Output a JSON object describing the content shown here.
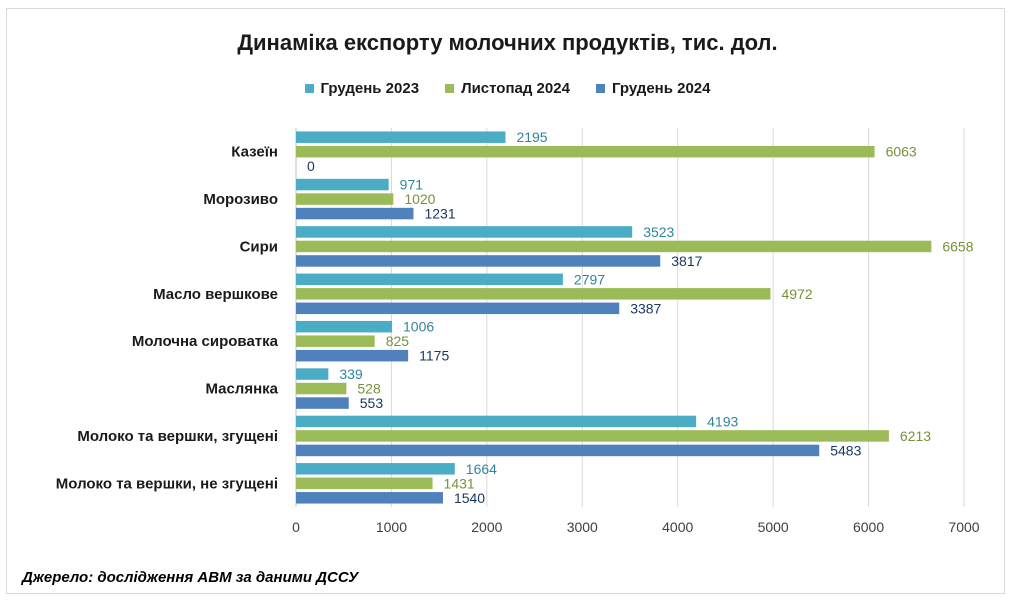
{
  "chart_data": {
    "type": "bar",
    "orientation": "horizontal",
    "title": "Динаміка експорту молочних продуктів, тис. дол.",
    "categories": [
      "Казеїн",
      "Морозиво",
      "Сири",
      "Масло вершкове",
      "Молочна сироватка",
      "Маслянка",
      "Молоко та вершки, згущені",
      "Молоко та вершки, не згущені"
    ],
    "series": [
      {
        "name": "Грудень 2023",
        "color": "#4bacc6",
        "label_color": "#31849b",
        "values": [
          2195,
          971,
          3523,
          2797,
          1006,
          339,
          4193,
          1664
        ]
      },
      {
        "name": "Листопад 2024",
        "color": "#9bbb59",
        "label_color": "#76923c",
        "values": [
          6063,
          1020,
          6658,
          4972,
          825,
          528,
          6213,
          1431
        ]
      },
      {
        "name": "Грудень 2024",
        "color": "#4f81bd",
        "label_color": "#17375e",
        "values": [
          0,
          1231,
          3817,
          3387,
          1175,
          553,
          5483,
          1540
        ]
      }
    ],
    "xlim": [
      0,
      7000
    ],
    "xticks": [
      0,
      1000,
      2000,
      3000,
      4000,
      5000,
      6000,
      7000
    ],
    "grid": true,
    "legend_position": "top"
  },
  "source": "Джерело: дослідження АВМ за даними ДССУ"
}
